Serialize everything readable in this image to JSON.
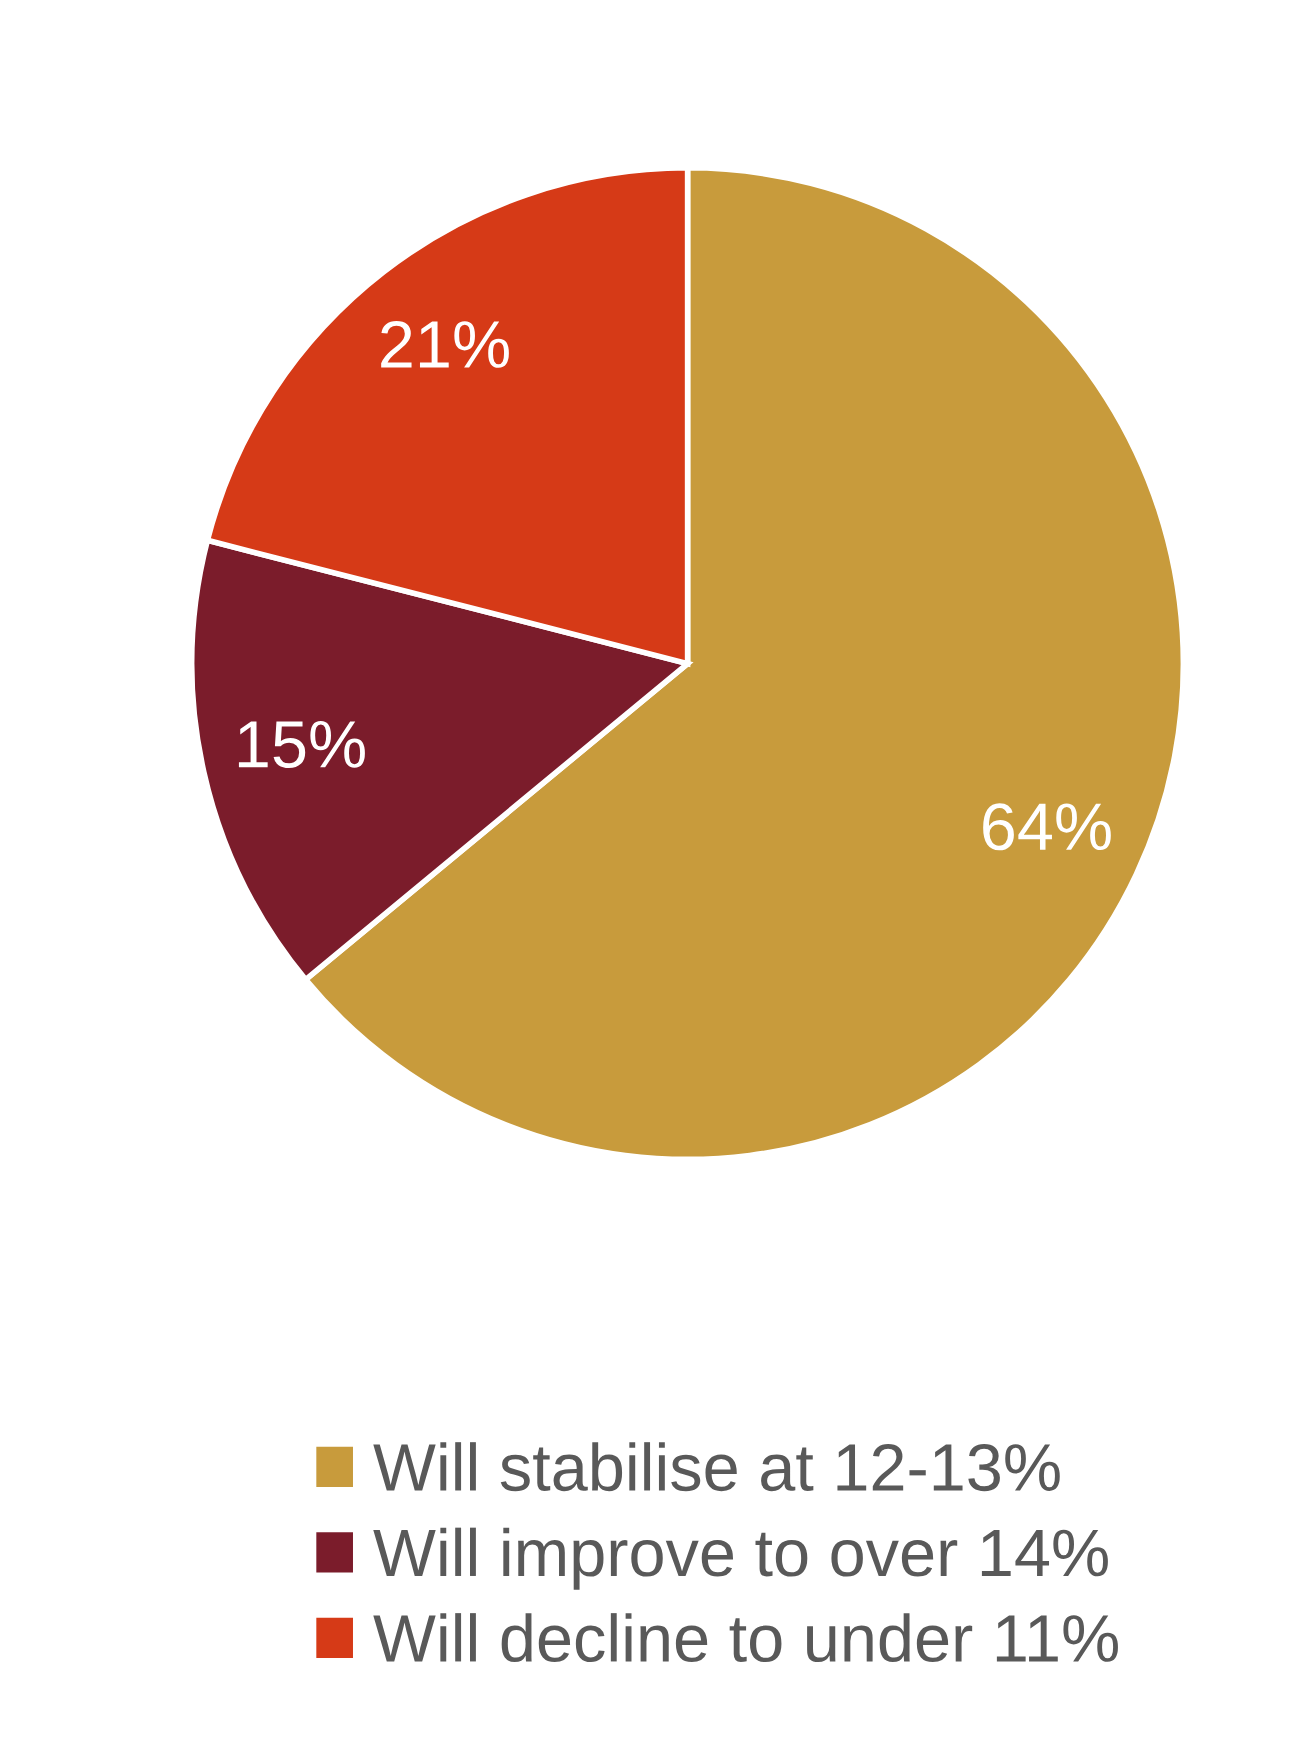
{
  "chart_data": {
    "type": "pie",
    "categories": [
      "Will stabilise at 12-13%",
      "Will improve to over 14%",
      "Will decline to under 11%"
    ],
    "values": [
      64,
      15,
      21
    ],
    "colors": [
      "#c89b3c",
      "#7b1c2b",
      "#d63a17"
    ],
    "value_labels": [
      "64%",
      "15%",
      "21%"
    ],
    "legend": "bottom"
  }
}
